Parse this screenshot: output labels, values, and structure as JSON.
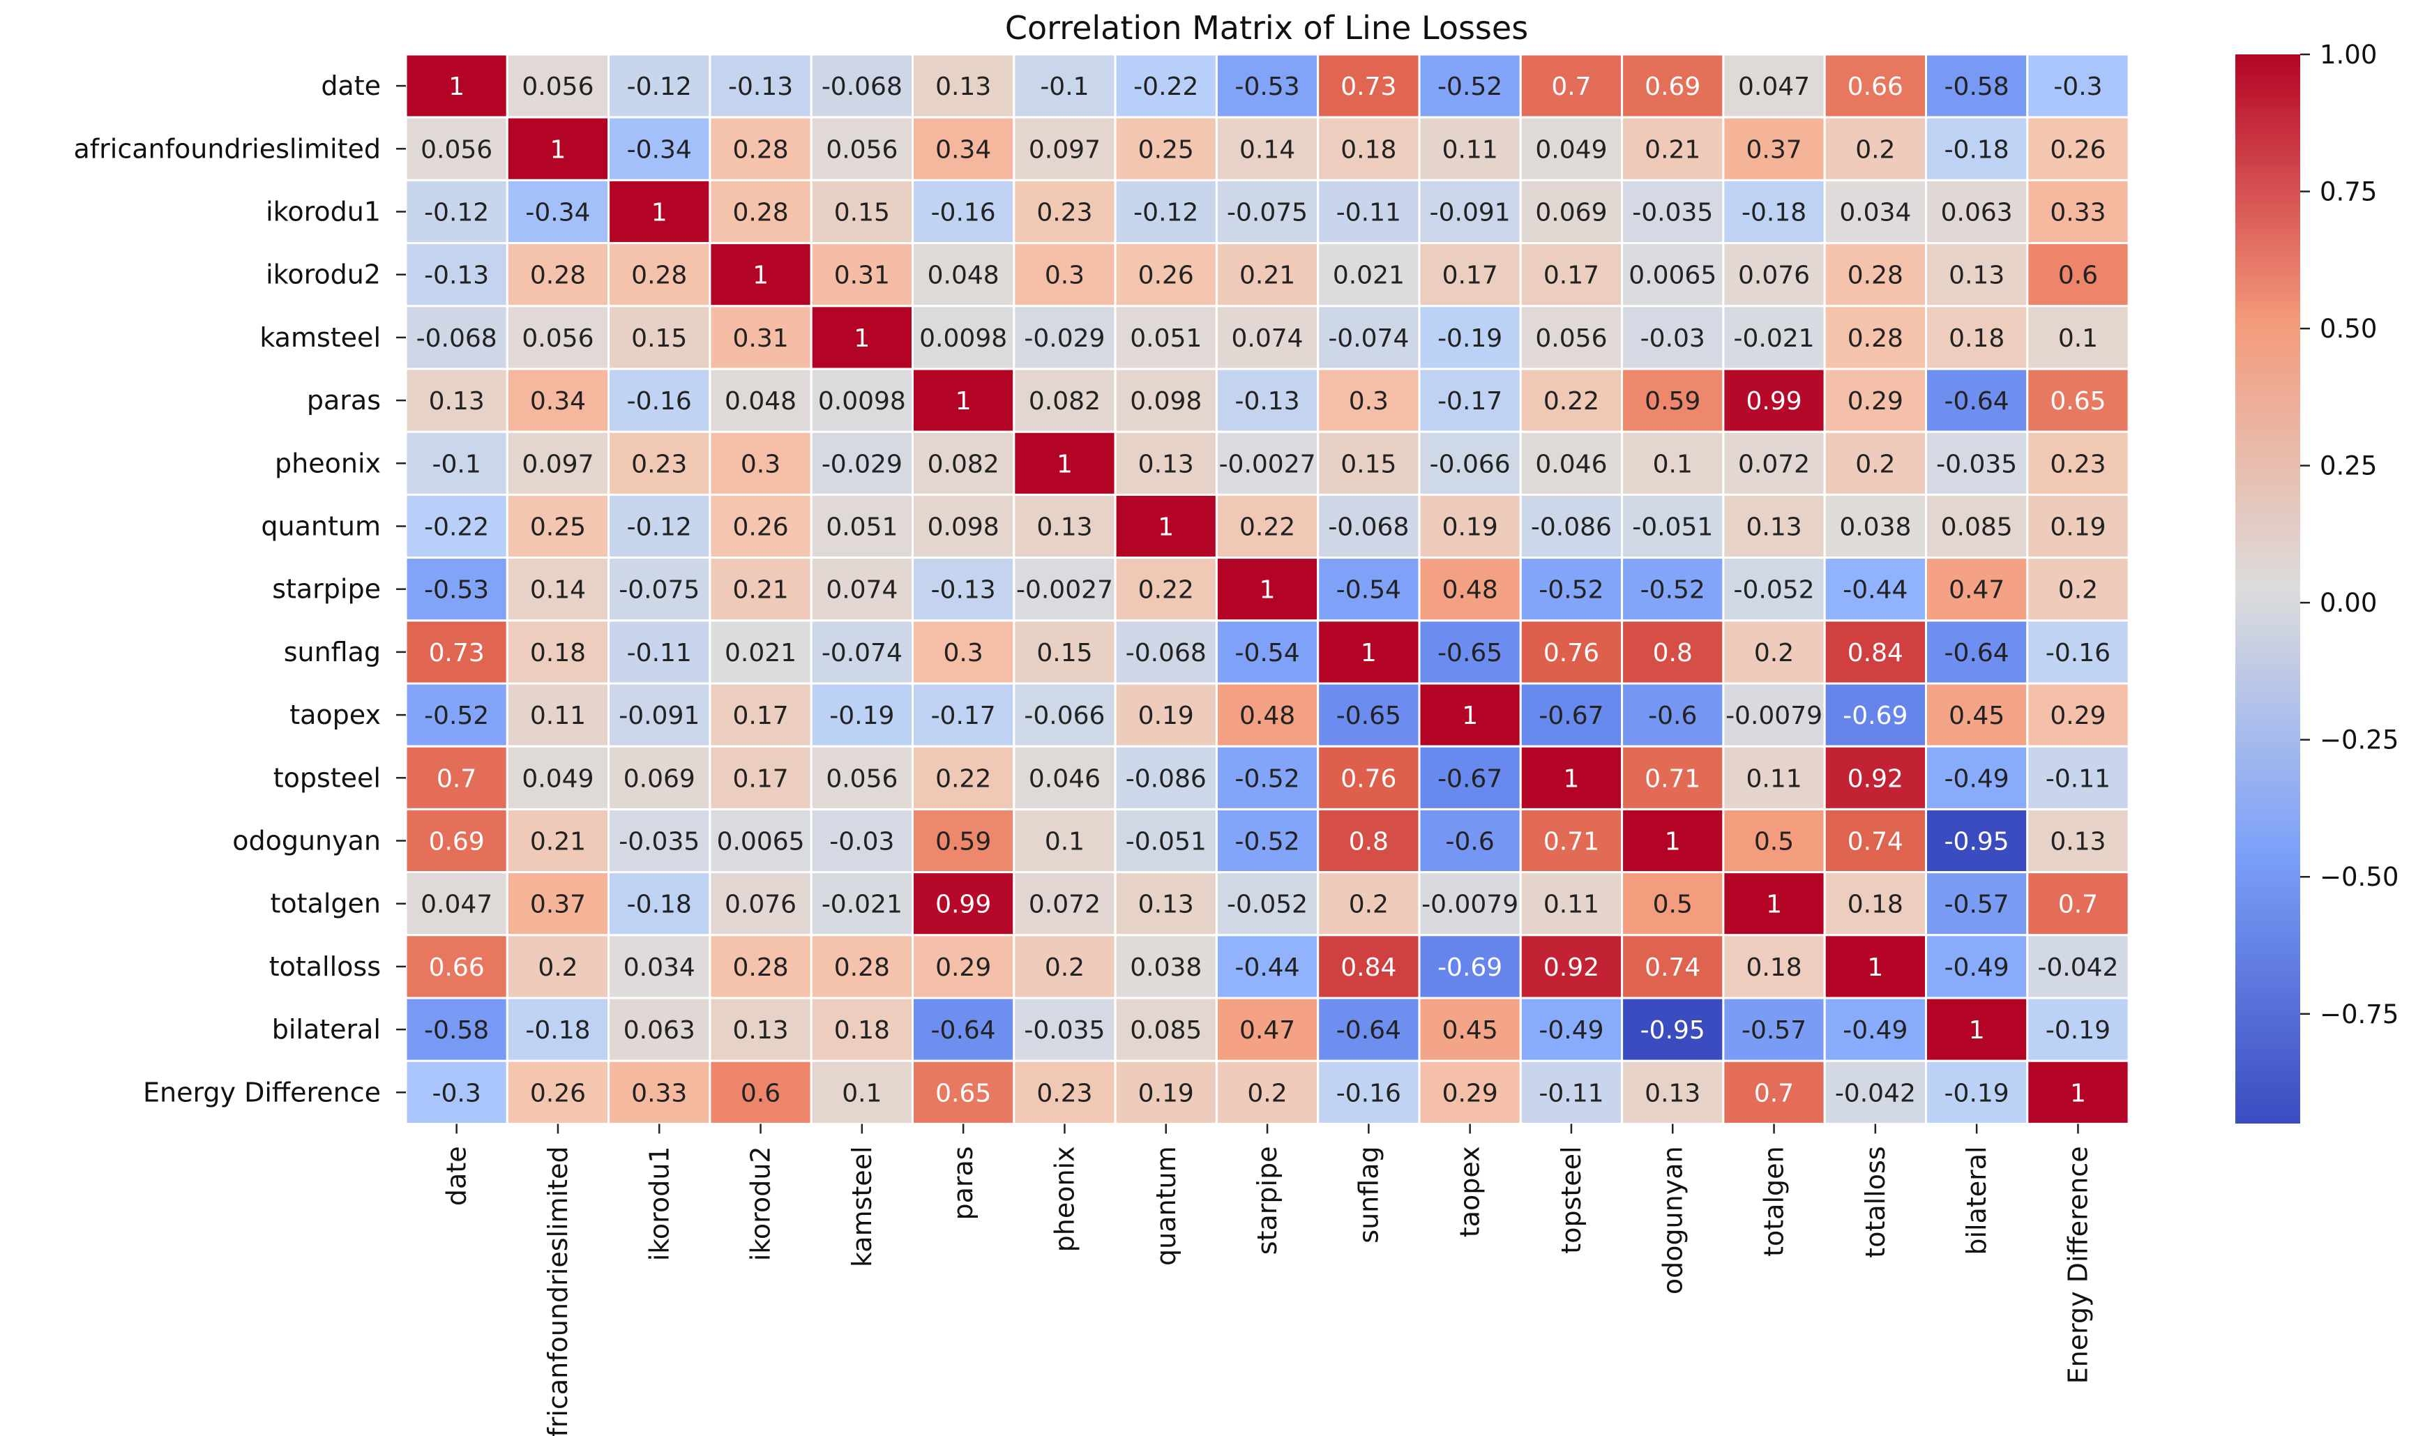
{
  "chart_data": {
    "type": "heatmap",
    "title": "Correlation Matrix of Line Losses",
    "xlabel": "",
    "ylabel": "",
    "colormap": "coolwarm",
    "vmin": -0.95,
    "vmax": 1.0,
    "labels": [
      "date",
      "africanfoundrieslimited",
      "ikorodu1",
      "ikorodu2",
      "kamsteel",
      "paras",
      "pheonix",
      "quantum",
      "starpipe",
      "sunflag",
      "taopex",
      "topsteel",
      "odogunyan",
      "totalgen",
      "totalloss",
      "bilateral",
      "Energy Difference"
    ],
    "matrix": [
      [
        "1",
        "0.056",
        "-0.12",
        "-0.13",
        "-0.068",
        "0.13",
        "-0.1",
        "-0.22",
        "-0.53",
        "0.73",
        "-0.52",
        "0.7",
        "0.69",
        "0.047",
        "0.66",
        "-0.58",
        "-0.3"
      ],
      [
        "0.056",
        "1",
        "-0.34",
        "0.28",
        "0.056",
        "0.34",
        "0.097",
        "0.25",
        "0.14",
        "0.18",
        "0.11",
        "0.049",
        "0.21",
        "0.37",
        "0.2",
        "-0.18",
        "0.26"
      ],
      [
        "-0.12",
        "-0.34",
        "1",
        "0.28",
        "0.15",
        "-0.16",
        "0.23",
        "-0.12",
        "-0.075",
        "-0.11",
        "-0.091",
        "0.069",
        "-0.035",
        "-0.18",
        "0.034",
        "0.063",
        "0.33"
      ],
      [
        "-0.13",
        "0.28",
        "0.28",
        "1",
        "0.31",
        "0.048",
        "0.3",
        "0.26",
        "0.21",
        "0.021",
        "0.17",
        "0.17",
        "0.0065",
        "0.076",
        "0.28",
        "0.13",
        "0.6"
      ],
      [
        "-0.068",
        "0.056",
        "0.15",
        "0.31",
        "1",
        "0.0098",
        "-0.029",
        "0.051",
        "0.074",
        "-0.074",
        "-0.19",
        "0.056",
        "-0.03",
        "-0.021",
        "0.28",
        "0.18",
        "0.1"
      ],
      [
        "0.13",
        "0.34",
        "-0.16",
        "0.048",
        "0.0098",
        "1",
        "0.082",
        "0.098",
        "-0.13",
        "0.3",
        "-0.17",
        "0.22",
        "0.59",
        "0.99",
        "0.29",
        "-0.64",
        "0.65"
      ],
      [
        "-0.1",
        "0.097",
        "0.23",
        "0.3",
        "-0.029",
        "0.082",
        "1",
        "0.13",
        "-0.0027",
        "0.15",
        "-0.066",
        "0.046",
        "0.1",
        "0.072",
        "0.2",
        "-0.035",
        "0.23"
      ],
      [
        "-0.22",
        "0.25",
        "-0.12",
        "0.26",
        "0.051",
        "0.098",
        "0.13",
        "1",
        "0.22",
        "-0.068",
        "0.19",
        "-0.086",
        "-0.051",
        "0.13",
        "0.038",
        "0.085",
        "0.19"
      ],
      [
        "-0.53",
        "0.14",
        "-0.075",
        "0.21",
        "0.074",
        "-0.13",
        "-0.0027",
        "0.22",
        "1",
        "-0.54",
        "0.48",
        "-0.52",
        "-0.52",
        "-0.052",
        "-0.44",
        "0.47",
        "0.2"
      ],
      [
        "0.73",
        "0.18",
        "-0.11",
        "0.021",
        "-0.074",
        "0.3",
        "0.15",
        "-0.068",
        "-0.54",
        "1",
        "-0.65",
        "0.76",
        "0.8",
        "0.2",
        "0.84",
        "-0.64",
        "-0.16"
      ],
      [
        "-0.52",
        "0.11",
        "-0.091",
        "0.17",
        "-0.19",
        "-0.17",
        "-0.066",
        "0.19",
        "0.48",
        "-0.65",
        "1",
        "-0.67",
        "-0.6",
        "-0.0079",
        "-0.69",
        "0.45",
        "0.29"
      ],
      [
        "0.7",
        "0.049",
        "0.069",
        "0.17",
        "0.056",
        "0.22",
        "0.046",
        "-0.086",
        "-0.52",
        "0.76",
        "-0.67",
        "1",
        "0.71",
        "0.11",
        "0.92",
        "-0.49",
        "-0.11"
      ],
      [
        "0.69",
        "0.21",
        "-0.035",
        "0.0065",
        "-0.03",
        "0.59",
        "0.1",
        "-0.051",
        "-0.52",
        "0.8",
        "-0.6",
        "0.71",
        "1",
        "0.5",
        "0.74",
        "-0.95",
        "0.13"
      ],
      [
        "0.047",
        "0.37",
        "-0.18",
        "0.076",
        "-0.021",
        "0.99",
        "0.072",
        "0.13",
        "-0.052",
        "0.2",
        "-0.0079",
        "0.11",
        "0.5",
        "1",
        "0.18",
        "-0.57",
        "0.7"
      ],
      [
        "0.66",
        "0.2",
        "0.034",
        "0.28",
        "0.28",
        "0.29",
        "0.2",
        "0.038",
        "-0.44",
        "0.84",
        "-0.69",
        "0.92",
        "0.74",
        "0.18",
        "1",
        "-0.49",
        "-0.042"
      ],
      [
        "-0.58",
        "-0.18",
        "0.063",
        "0.13",
        "0.18",
        "-0.64",
        "-0.035",
        "0.085",
        "0.47",
        "-0.64",
        "0.45",
        "-0.49",
        "-0.95",
        "-0.57",
        "-0.49",
        "1",
        "-0.19"
      ],
      [
        "-0.3",
        "0.26",
        "0.33",
        "0.6",
        "0.1",
        "0.65",
        "0.23",
        "0.19",
        "0.2",
        "-0.16",
        "0.29",
        "-0.11",
        "0.13",
        "0.7",
        "-0.042",
        "-0.19",
        "1"
      ]
    ],
    "colorbar": {
      "ticks": [
        1.0,
        0.75,
        0.5,
        0.25,
        0.0,
        -0.25,
        -0.5,
        -0.75
      ],
      "tick_labels": [
        "1.00",
        "0.75",
        "0.50",
        "0.25",
        "0.00",
        "−0.25",
        "−0.50",
        "−0.75"
      ]
    }
  }
}
